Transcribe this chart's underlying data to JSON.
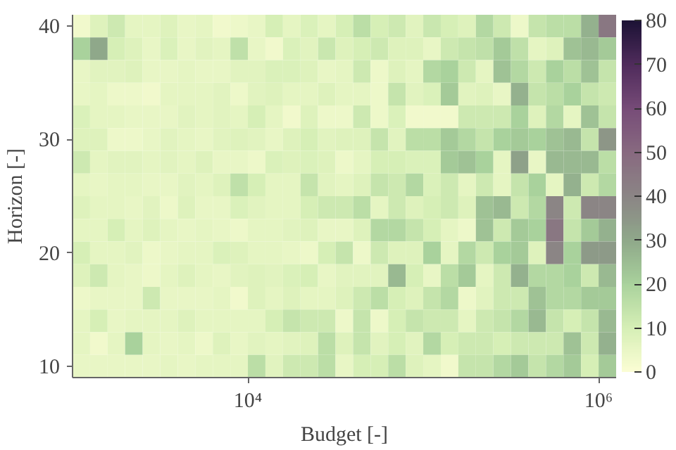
{
  "chart_data": {
    "type": "heatmap",
    "xlabel": "Budget [-]",
    "ylabel": "Horizon [-]",
    "log": "x",
    "x": [
      1122,
      1413,
      1778,
      2239,
      2818,
      3548,
      4467,
      5623,
      7079,
      8913,
      11220,
      14125,
      17783,
      22387,
      28184,
      35481,
      44668,
      56234,
      70795,
      89125,
      112202,
      141254,
      177828,
      223872,
      281838,
      354813,
      446684,
      562341,
      707946,
      891251,
      1122018
    ],
    "y": [
      40,
      38,
      36,
      34,
      32,
      30,
      28,
      26,
      24,
      22,
      20,
      18,
      16,
      14,
      12,
      10
    ],
    "xlim": [
      1000,
      1258925
    ],
    "ylim": [
      9,
      41
    ],
    "xticks": [
      {
        "value": 10000,
        "label": "10⁴"
      },
      {
        "value": 1000000,
        "label": "10⁶"
      }
    ],
    "yticks": [
      10,
      20,
      30,
      40
    ],
    "clim": [
      0,
      80
    ],
    "cticks": [
      0,
      10,
      20,
      30,
      40,
      50,
      60,
      70,
      80
    ],
    "grid": false,
    "cells": [
      [
        3,
        8,
        12,
        6,
        6,
        8,
        5,
        6,
        3,
        4,
        5,
        10,
        6,
        9,
        6,
        10,
        16,
        10,
        12,
        7,
        13,
        10,
        8,
        18,
        12,
        4,
        14,
        16,
        16,
        28,
        45
      ],
      [
        20,
        30,
        10,
        8,
        5,
        9,
        5,
        7,
        6,
        15,
        5,
        3,
        9,
        7,
        13,
        8,
        10,
        12,
        8,
        8,
        5,
        12,
        14,
        15,
        22,
        15,
        6,
        8,
        24,
        26,
        22
      ],
      [
        5,
        7,
        7,
        8,
        5,
        5,
        6,
        5,
        5,
        7,
        7,
        9,
        9,
        8,
        5,
        6,
        12,
        4,
        8,
        6,
        18,
        20,
        12,
        6,
        24,
        18,
        12,
        20,
        16,
        24,
        14
      ],
      [
        5,
        6,
        4,
        4,
        3,
        6,
        6,
        6,
        7,
        4,
        7,
        8,
        6,
        6,
        8,
        6,
        6,
        4,
        14,
        7,
        9,
        22,
        7,
        8,
        5,
        28,
        14,
        16,
        20,
        14,
        12
      ],
      [
        9,
        6,
        6,
        5,
        5,
        5,
        7,
        6,
        7,
        6,
        10,
        6,
        3,
        8,
        4,
        4,
        12,
        4,
        9,
        3,
        3,
        3,
        12,
        12,
        12,
        20,
        8,
        18,
        6,
        24,
        14
      ],
      [
        8,
        8,
        4,
        4,
        5,
        7,
        6,
        5,
        7,
        8,
        7,
        5,
        8,
        10,
        7,
        8,
        8,
        14,
        7,
        16,
        16,
        22,
        18,
        14,
        20,
        22,
        20,
        24,
        26,
        14,
        35
      ],
      [
        12,
        6,
        7,
        7,
        6,
        7,
        6,
        8,
        5,
        5,
        4,
        9,
        8,
        9,
        8,
        4,
        6,
        10,
        10,
        9,
        9,
        22,
        24,
        20,
        6,
        32,
        5,
        26,
        26,
        26,
        16
      ],
      [
        6,
        5,
        6,
        6,
        5,
        5,
        7,
        6,
        8,
        15,
        10,
        6,
        6,
        14,
        7,
        6,
        8,
        14,
        12,
        18,
        9,
        12,
        6,
        12,
        6,
        14,
        20,
        6,
        28,
        12,
        18
      ],
      [
        8,
        6,
        6,
        5,
        7,
        4,
        8,
        5,
        5,
        9,
        7,
        6,
        6,
        10,
        12,
        12,
        16,
        6,
        12,
        8,
        10,
        12,
        8,
        24,
        26,
        12,
        18,
        40,
        12,
        40,
        40
      ],
      [
        6,
        6,
        10,
        6,
        8,
        6,
        5,
        6,
        5,
        4,
        6,
        6,
        7,
        8,
        5,
        5,
        8,
        18,
        18,
        14,
        10,
        6,
        4,
        24,
        12,
        22,
        20,
        45,
        14,
        22,
        28
      ],
      [
        10,
        6,
        6,
        7,
        4,
        5,
        6,
        6,
        9,
        8,
        6,
        6,
        5,
        4,
        10,
        14,
        4,
        12,
        8,
        8,
        20,
        6,
        18,
        12,
        20,
        22,
        8,
        40,
        20,
        34,
        34
      ],
      [
        8,
        12,
        6,
        5,
        4,
        6,
        8,
        6,
        5,
        7,
        8,
        7,
        9,
        10,
        5,
        7,
        7,
        7,
        26,
        10,
        5,
        16,
        22,
        6,
        12,
        28,
        18,
        18,
        20,
        12,
        26
      ],
      [
        4,
        5,
        5,
        5,
        12,
        5,
        5,
        5,
        6,
        3,
        8,
        6,
        8,
        6,
        6,
        8,
        12,
        16,
        10,
        8,
        14,
        18,
        4,
        7,
        12,
        12,
        24,
        18,
        18,
        22,
        22
      ],
      [
        6,
        10,
        5,
        6,
        6,
        6,
        8,
        6,
        6,
        6,
        6,
        10,
        14,
        12,
        12,
        4,
        14,
        4,
        10,
        14,
        12,
        12,
        6,
        12,
        14,
        18,
        26,
        14,
        10,
        14,
        26
      ],
      [
        6,
        3,
        6,
        20,
        6,
        5,
        6,
        4,
        8,
        5,
        7,
        6,
        7,
        8,
        16,
        8,
        14,
        7,
        10,
        7,
        18,
        10,
        12,
        12,
        10,
        12,
        12,
        12,
        24,
        12,
        28
      ],
      [
        5,
        5,
        5,
        5,
        5,
        6,
        5,
        6,
        6,
        6,
        16,
        7,
        12,
        12,
        16,
        5,
        10,
        10,
        16,
        8,
        6,
        3,
        14,
        14,
        18,
        22,
        14,
        18,
        22,
        10,
        22
      ]
    ]
  }
}
